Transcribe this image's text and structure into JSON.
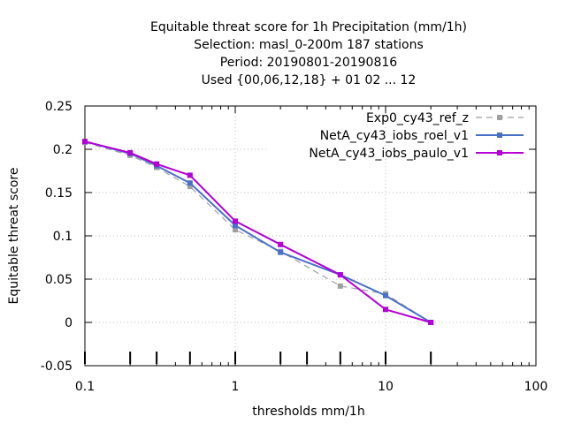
{
  "chart_data": {
    "type": "line",
    "title_lines": [
      "Equitable threat score  for 1h Precipitation (mm/1h)",
      "Selection: masl_0-200m    187 stations",
      "Period: 20190801-20190816",
      "Used {00,06,12,18} + 01 02 ... 12"
    ],
    "xlabel": "thresholds mm/1h",
    "ylabel": "Equitable threat score",
    "xscale": "log",
    "xlim": [
      0.1,
      100
    ],
    "ylim": [
      -0.05,
      0.25
    ],
    "x_ticks": [
      0.1,
      1,
      10,
      100
    ],
    "x_tick_labels": [
      "0.1",
      "1",
      "10",
      "100"
    ],
    "y_ticks": [
      -0.05,
      0,
      0.05,
      0.1,
      0.15,
      0.2,
      0.25
    ],
    "y_tick_labels": [
      "-0.05",
      "0",
      "0.05",
      "0.1",
      "0.15",
      "0.2",
      "0.25"
    ],
    "grid": true,
    "legend_position": "top-right",
    "bottom_bars_x": [
      0.1,
      0.2,
      0.3,
      0.5,
      1,
      2,
      3,
      5,
      10,
      20
    ],
    "series": [
      {
        "name": "Exp0_cy43_ref_z",
        "color": "#a0a0a0",
        "dashed": true,
        "x": [
          0.1,
          0.2,
          0.3,
          0.5,
          1,
          2,
          5,
          10,
          20
        ],
        "y": [
          0.208,
          0.193,
          0.179,
          0.157,
          0.107,
          0.082,
          0.042,
          0.033,
          0.0
        ]
      },
      {
        "name": "NetA_cy43_iobs_roel_v1",
        "color": "#4a70c8",
        "dashed": false,
        "x": [
          0.1,
          0.2,
          0.3,
          0.5,
          1,
          2,
          5,
          10,
          20
        ],
        "y": [
          0.209,
          0.195,
          0.181,
          0.161,
          0.112,
          0.081,
          0.055,
          0.031,
          0.0
        ]
      },
      {
        "name": "NetA_cy43_iobs_paulo_v1",
        "color": "#b400d6",
        "dashed": false,
        "x": [
          0.1,
          0.2,
          0.3,
          0.5,
          1,
          2,
          5,
          10,
          20
        ],
        "y": [
          0.209,
          0.196,
          0.183,
          0.17,
          0.117,
          0.09,
          0.055,
          0.015,
          0.0
        ]
      }
    ]
  }
}
